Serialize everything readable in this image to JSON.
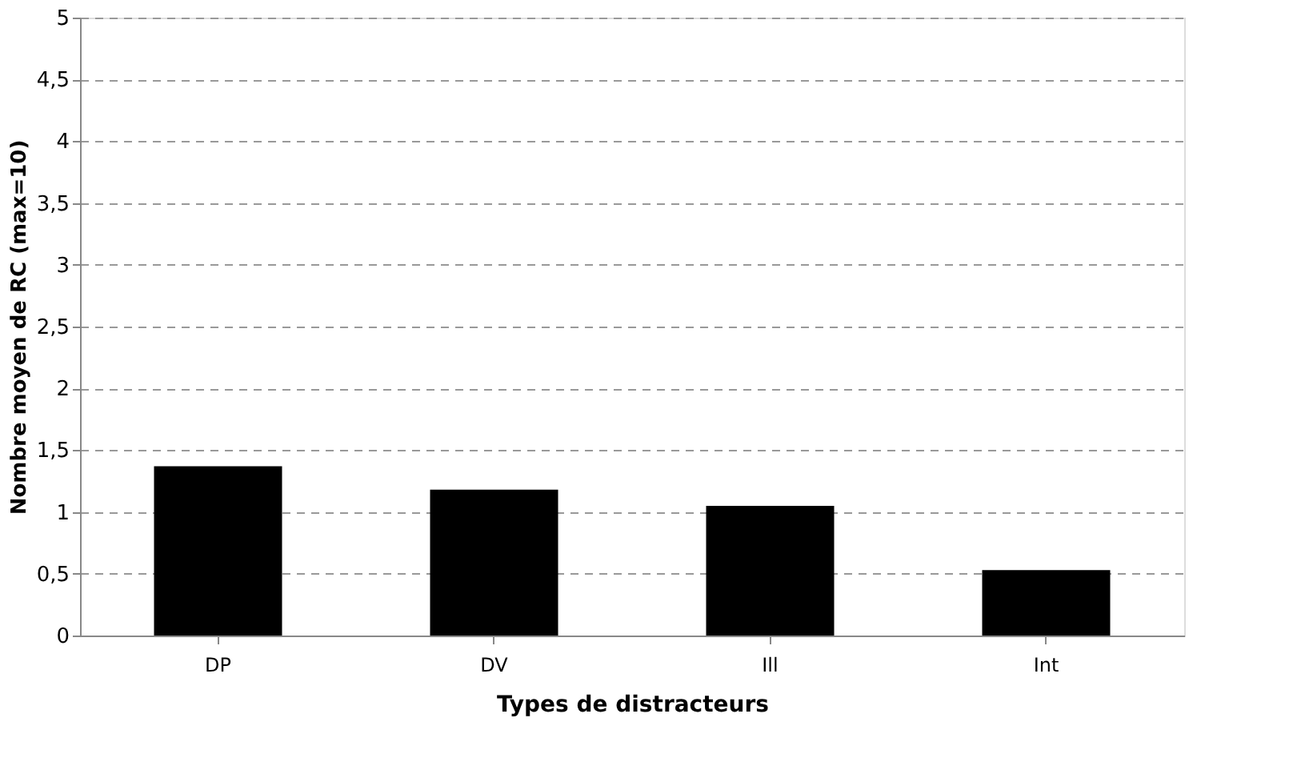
{
  "chart_data": {
    "type": "bar",
    "xlabel": "Types de distracteurs",
    "ylabel": "Nombre moyen de RC (max=10)",
    "categories": [
      "DP",
      "DV",
      "Ill",
      "Int"
    ],
    "series": [
      {
        "color": "#000000",
        "values": [
          1.37,
          1.18,
          1.05,
          0.53
        ]
      }
    ],
    "ylim": [
      0,
      5
    ],
    "yticks": [
      0,
      {
        "value": 0.5,
        "label": "0,5"
      },
      1,
      {
        "value": 1.5,
        "label": "1,5"
      },
      2,
      {
        "value": 2.5,
        "label": "2,5"
      },
      3,
      {
        "value": 3.5,
        "label": "3,5"
      },
      4,
      {
        "value": 4.5,
        "label": "4,5"
      },
      5
    ],
    "grid": "y"
  }
}
